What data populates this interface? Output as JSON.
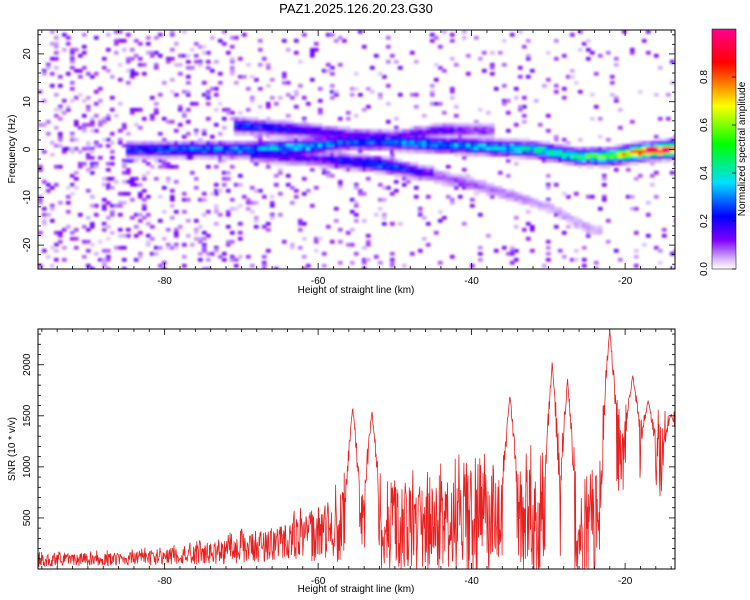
{
  "figure": {
    "title": "PAZ1.2025.126.20.23.G30"
  },
  "chart_data": [
    {
      "type": "heatmap",
      "xlabel": "Height of straight line (km)",
      "ylabel": "Frequency (Hz)",
      "xlim": [
        -96.5,
        -13.5
      ],
      "ylim": [
        -25,
        25
      ],
      "xticks": [
        -80,
        -60,
        -40,
        -20
      ],
      "yticks": [
        -20,
        -10,
        0,
        10,
        20
      ],
      "xtick_labels": [
        "-80",
        "-60",
        "-40",
        "-20"
      ],
      "ytick_labels": [
        "-20",
        "-10",
        "0",
        "10",
        "20"
      ],
      "grid": false,
      "colormap": [
        "#e8d4ff",
        "#b080ff",
        "#7a00ff",
        "#0000ff",
        "#00d0ff",
        "#00ff00",
        "#ffff00",
        "#ff0000",
        "#ff0090"
      ],
      "ridges": [
        {
          "x": [
            -84,
            -70,
            -62,
            -56,
            -50,
            -44,
            -38,
            -32,
            -26,
            -22,
            -18,
            -14
          ],
          "y": [
            0,
            0,
            0.5,
            1.5,
            1.5,
            1,
            0.5,
            0,
            -1.5,
            -1.5,
            -0.5,
            0
          ],
          "amplitude": [
            0.25,
            0.3,
            0.35,
            0.25,
            0.3,
            0.3,
            0.35,
            0.4,
            0.5,
            0.6,
            0.95,
            1.0
          ]
        },
        {
          "x": [
            -70,
            -62,
            -56,
            -50,
            -44,
            -38
          ],
          "y": [
            5,
            4,
            3,
            2.5,
            4,
            4
          ],
          "amplitude": [
            0.25,
            0.2,
            0.15,
            0.15,
            0.15,
            0.1
          ]
        },
        {
          "x": [
            -68,
            -60,
            -52,
            -46
          ],
          "y": [
            -1,
            -2,
            -3,
            -5
          ],
          "amplitude": [
            0.2,
            0.15,
            0.3,
            0.15
          ]
        },
        {
          "x": [
            -46,
            -38,
            -30,
            -24
          ],
          "y": [
            -5,
            -8,
            -12,
            -17
          ],
          "amplitude": [
            0.1,
            0.08,
            0.05,
            0.05
          ]
        }
      ]
    },
    {
      "type": "line",
      "xlabel": "Height of straight line (km)",
      "ylabel": "SNR (10 * v/v)",
      "xlim": [
        -96.5,
        -13.5
      ],
      "ylim": [
        0,
        2350
      ],
      "xticks": [
        -80,
        -60,
        -40,
        -20
      ],
      "yticks": [
        500,
        1000,
        1500,
        2000
      ],
      "xtick_labels": [
        "-80",
        "-60",
        "-40",
        "-20"
      ],
      "ytick_labels": [
        "500",
        "1000",
        "1500",
        "2000"
      ],
      "grid": false,
      "line_color": "#e82020",
      "envelope": {
        "x": [
          -96.5,
          -90,
          -84,
          -80,
          -76,
          -72,
          -68,
          -64,
          -60,
          -58,
          -56,
          -54,
          -50,
          -46,
          -42,
          -38,
          -35,
          -32,
          -30,
          -28,
          -26,
          -24,
          -22,
          -20,
          -18,
          -16,
          -13.5
        ],
        "base": [
          80,
          90,
          100,
          120,
          140,
          170,
          220,
          280,
          340,
          380,
          420,
          380,
          400,
          380,
          420,
          480,
          500,
          450,
          480,
          450,
          350,
          420,
          1100,
          1150,
          1100,
          1050,
          1100
        ],
        "spread": [
          100,
          100,
          110,
          130,
          160,
          200,
          260,
          300,
          450,
          500,
          650,
          600,
          700,
          700,
          800,
          900,
          900,
          850,
          1000,
          900,
          700,
          900,
          700,
          700,
          650,
          600,
          550
        ]
      },
      "peaks": [
        {
          "x": -55.5,
          "y": 1590
        },
        {
          "x": -53,
          "y": 1550
        },
        {
          "x": -35,
          "y": 1700
        },
        {
          "x": -29.5,
          "y": 2030
        },
        {
          "x": -27.5,
          "y": 1870
        },
        {
          "x": -22,
          "y": 2340
        },
        {
          "x": -19,
          "y": 1900
        },
        {
          "x": -17,
          "y": 1650
        },
        {
          "x": -14,
          "y": 1520
        }
      ]
    }
  ],
  "colorbar": {
    "label": "Normalized spectral amplitude",
    "range": [
      0,
      1
    ],
    "ticks": [
      0.0,
      0.2,
      0.4,
      0.6,
      0.8
    ],
    "tick_labels": [
      "0.0",
      "0.2",
      "0.4",
      "0.6",
      "0.8"
    ]
  }
}
